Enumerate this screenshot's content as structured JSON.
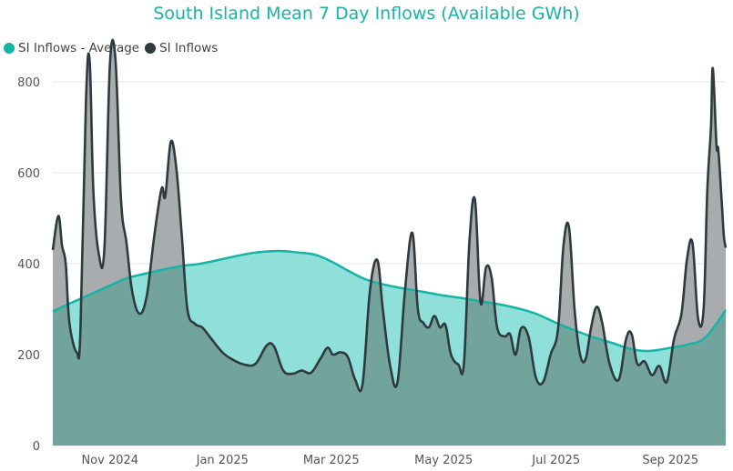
{
  "colors": {
    "average": "#16b4a6",
    "average_fill": "#8fe0d8",
    "inflows": "#2e3a3d",
    "inflows_fill": "#a9acae",
    "overlap_fill": "#72a39d",
    "grid": "#e6e6e6"
  },
  "chart_data": {
    "type": "area",
    "title": "South Island Mean 7 Day Inflows (Available GWh)",
    "xlabel": "",
    "ylabel": "",
    "ylim": [
      0,
      800
    ],
    "yticks": [
      0,
      200,
      400,
      600,
      800
    ],
    "xticks": [
      "Nov 2024",
      "Jan 2025",
      "Mar 2025",
      "May 2025",
      "Jul 2025",
      "Sep 2025"
    ],
    "xtick_dates": [
      "2024-11-01",
      "2025-01-01",
      "2025-03-01",
      "2025-05-01",
      "2025-07-01",
      "2025-09-01"
    ],
    "x_start": "2024-10-01",
    "x_end": "2025-10-01",
    "legend_position": "top-left",
    "grid": true,
    "series": [
      {
        "name": "SI Inflows - Average",
        "points": [
          [
            "2024-10-01",
            295
          ],
          [
            "2024-10-10",
            312
          ],
          [
            "2024-10-20",
            330
          ],
          [
            "2024-11-01",
            352
          ],
          [
            "2024-11-10",
            368
          ],
          [
            "2024-11-20",
            378
          ],
          [
            "2024-12-01",
            388
          ],
          [
            "2024-12-10",
            395
          ],
          [
            "2024-12-20",
            400
          ],
          [
            "2025-01-01",
            410
          ],
          [
            "2025-01-10",
            418
          ],
          [
            "2025-01-20",
            425
          ],
          [
            "2025-02-01",
            428
          ],
          [
            "2025-02-10",
            425
          ],
          [
            "2025-02-20",
            420
          ],
          [
            "2025-03-01",
            405
          ],
          [
            "2025-03-10",
            385
          ],
          [
            "2025-03-20",
            365
          ],
          [
            "2025-04-01",
            352
          ],
          [
            "2025-04-10",
            345
          ],
          [
            "2025-04-20",
            338
          ],
          [
            "2025-05-01",
            330
          ],
          [
            "2025-05-10",
            325
          ],
          [
            "2025-05-20",
            318
          ],
          [
            "2025-06-01",
            310
          ],
          [
            "2025-06-10",
            302
          ],
          [
            "2025-06-20",
            290
          ],
          [
            "2025-07-01",
            270
          ],
          [
            "2025-07-10",
            255
          ],
          [
            "2025-07-20",
            240
          ],
          [
            "2025-08-01",
            225
          ],
          [
            "2025-08-10",
            213
          ],
          [
            "2025-08-20",
            208
          ],
          [
            "2025-09-01",
            215
          ],
          [
            "2025-09-10",
            222
          ],
          [
            "2025-09-20",
            238
          ],
          [
            "2025-10-01",
            298
          ]
        ]
      },
      {
        "name": "SI Inflows",
        "points": [
          [
            "2024-10-01",
            430
          ],
          [
            "2024-10-04",
            505
          ],
          [
            "2024-10-06",
            440
          ],
          [
            "2024-10-08",
            400
          ],
          [
            "2024-10-10",
            270
          ],
          [
            "2024-10-14",
            205
          ],
          [
            "2024-10-16",
            255
          ],
          [
            "2024-10-19",
            760
          ],
          [
            "2024-10-21",
            845
          ],
          [
            "2024-10-23",
            560
          ],
          [
            "2024-10-26",
            420
          ],
          [
            "2024-10-29",
            435
          ],
          [
            "2024-11-01",
            840
          ],
          [
            "2024-11-04",
            848
          ],
          [
            "2024-11-07",
            540
          ],
          [
            "2024-11-10",
            445
          ],
          [
            "2024-11-13",
            340
          ],
          [
            "2024-11-17",
            290
          ],
          [
            "2024-11-21",
            330
          ],
          [
            "2024-11-25",
            460
          ],
          [
            "2024-11-29",
            565
          ],
          [
            "2024-12-01",
            548
          ],
          [
            "2024-12-04",
            668
          ],
          [
            "2024-12-07",
            610
          ],
          [
            "2024-12-10",
            460
          ],
          [
            "2024-12-13",
            300
          ],
          [
            "2024-12-17",
            268
          ],
          [
            "2024-12-21",
            260
          ],
          [
            "2024-12-25",
            240
          ],
          [
            "2025-01-01",
            205
          ],
          [
            "2025-01-07",
            188
          ],
          [
            "2025-01-13",
            178
          ],
          [
            "2025-01-19",
            180
          ],
          [
            "2025-01-25",
            220
          ],
          [
            "2025-01-29",
            218
          ],
          [
            "2025-02-03",
            165
          ],
          [
            "2025-02-08",
            158
          ],
          [
            "2025-02-13",
            165
          ],
          [
            "2025-02-18",
            160
          ],
          [
            "2025-02-23",
            190
          ],
          [
            "2025-02-27",
            215
          ],
          [
            "2025-03-02",
            200
          ],
          [
            "2025-03-06",
            205
          ],
          [
            "2025-03-10",
            195
          ],
          [
            "2025-03-14",
            145
          ],
          [
            "2025-03-18",
            135
          ],
          [
            "2025-03-22",
            340
          ],
          [
            "2025-03-26",
            408
          ],
          [
            "2025-03-29",
            300
          ],
          [
            "2025-04-02",
            175
          ],
          [
            "2025-04-06",
            140
          ],
          [
            "2025-04-10",
            340
          ],
          [
            "2025-04-14",
            468
          ],
          [
            "2025-04-17",
            300
          ],
          [
            "2025-04-20",
            270
          ],
          [
            "2025-04-23",
            260
          ],
          [
            "2025-04-26",
            285
          ],
          [
            "2025-04-29",
            260
          ],
          [
            "2025-05-02",
            265
          ],
          [
            "2025-05-05",
            200
          ],
          [
            "2025-05-09",
            178
          ],
          [
            "2025-05-12",
            180
          ],
          [
            "2025-05-15",
            450
          ],
          [
            "2025-05-18",
            540
          ],
          [
            "2025-05-21",
            315
          ],
          [
            "2025-05-24",
            392
          ],
          [
            "2025-05-27",
            370
          ],
          [
            "2025-05-30",
            260
          ],
          [
            "2025-06-03",
            240
          ],
          [
            "2025-06-06",
            245
          ],
          [
            "2025-06-09",
            200
          ],
          [
            "2025-06-12",
            258
          ],
          [
            "2025-06-16",
            240
          ],
          [
            "2025-06-20",
            150
          ],
          [
            "2025-06-24",
            140
          ],
          [
            "2025-06-28",
            200
          ],
          [
            "2025-07-02",
            255
          ],
          [
            "2025-07-05",
            440
          ],
          [
            "2025-07-08",
            480
          ],
          [
            "2025-07-11",
            300
          ],
          [
            "2025-07-14",
            200
          ],
          [
            "2025-07-17",
            190
          ],
          [
            "2025-07-20",
            260
          ],
          [
            "2025-07-23",
            305
          ],
          [
            "2025-07-26",
            270
          ],
          [
            "2025-07-30",
            180
          ],
          [
            "2025-08-04",
            145
          ],
          [
            "2025-08-08",
            235
          ],
          [
            "2025-08-11",
            245
          ],
          [
            "2025-08-14",
            180
          ],
          [
            "2025-08-18",
            185
          ],
          [
            "2025-08-22",
            155
          ],
          [
            "2025-08-26",
            175
          ],
          [
            "2025-08-30",
            140
          ],
          [
            "2025-09-03",
            235
          ],
          [
            "2025-09-07",
            290
          ],
          [
            "2025-09-10",
            410
          ],
          [
            "2025-09-13",
            445
          ],
          [
            "2025-09-16",
            280
          ],
          [
            "2025-09-19",
            300
          ],
          [
            "2025-09-21",
            560
          ],
          [
            "2025-09-23",
            700
          ],
          [
            "2025-09-24",
            830
          ],
          [
            "2025-09-26",
            660
          ],
          [
            "2025-09-27",
            650
          ],
          [
            "2025-09-29",
            525
          ],
          [
            "2025-09-30",
            460
          ],
          [
            "2025-10-01",
            435
          ]
        ]
      }
    ]
  }
}
